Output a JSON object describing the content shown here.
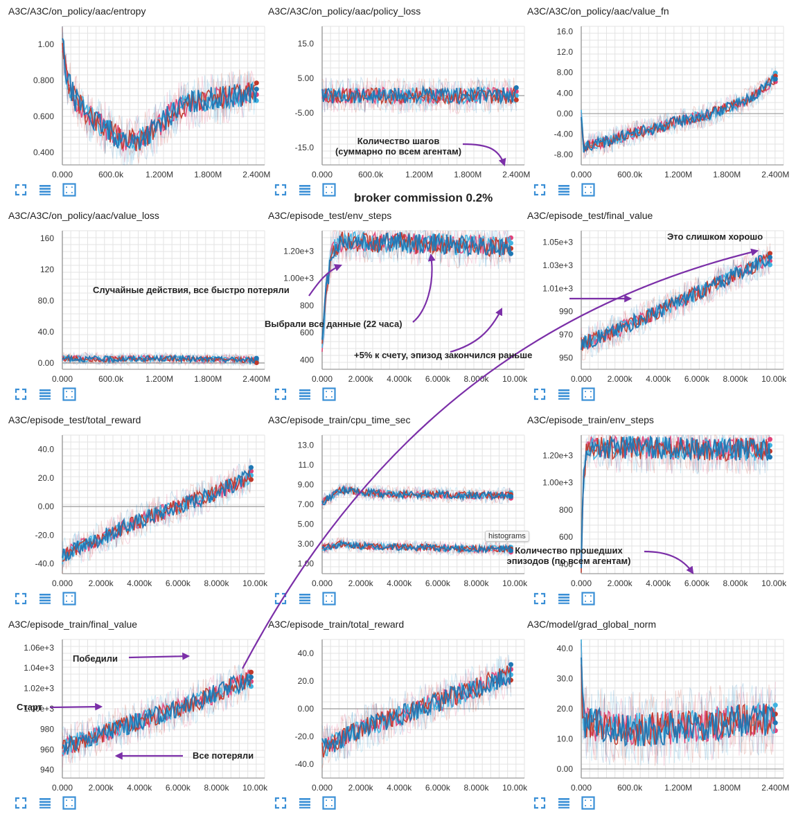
{
  "colors": {
    "run_blue_dark": "#1f77b4",
    "run_blue_light": "#3fb2e0",
    "run_red": "#c0392b",
    "run_pink": "#e0447a",
    "arrow": "#7b2fa8",
    "grid": "#e3e3e3",
    "icon": "#3a8fd6"
  },
  "icons": [
    "expand-icon",
    "data-table-icon",
    "fit-domain-icon"
  ],
  "page_annotations": {
    "broker": "broker commission 0.2%",
    "steps_note": "Количество шагов\n(суммарно по всем агентам)",
    "random_actions": "Случайные действия, все быстро потеряли",
    "all_data": "Выбрали все данные (22 часа)",
    "plus5": "+5% к счету, эпизод закончился раньше",
    "too_good": "Это слишком хорошо",
    "episodes_note": "Количество прошедших\nэпизодов (по всем агентам)",
    "won": "Победили",
    "start": "Старт",
    "all_lost": "Все потеряли",
    "tooltip": "histograms"
  },
  "chart_data": [
    {
      "type": "line",
      "name": "A3C/A3C/on_policy/aac/entropy",
      "title": "A3C/A3C/on_policy/aac/entropy",
      "x_ticks": [
        "0.000",
        "600.0k",
        "1.200M",
        "1.800M",
        "2.400M"
      ],
      "y_ticks": [
        "0.400",
        "0.600",
        "0.800",
        "1.00"
      ],
      "xlim": [
        0,
        2.5
      ],
      "ylim": [
        0.33,
        1.1
      ],
      "series": [
        {
          "x": [
            0,
            0.05,
            0.15,
            0.3,
            0.45,
            0.6,
            0.75,
            0.9,
            1.05,
            1.2,
            1.35,
            1.5,
            1.65,
            1.8,
            1.95,
            2.1,
            2.25,
            2.4
          ],
          "y": [
            1.02,
            0.82,
            0.7,
            0.62,
            0.56,
            0.51,
            0.47,
            0.46,
            0.5,
            0.55,
            0.62,
            0.66,
            0.68,
            0.7,
            0.7,
            0.71,
            0.72,
            0.74
          ],
          "noise": 0.07,
          "seed": 1
        }
      ]
    },
    {
      "type": "line",
      "name": "A3C/A3C/on_policy/aac/policy_loss",
      "title": "A3C/A3C/on_policy/aac/policy_loss",
      "x_ticks": [
        "0.000",
        "600.0k",
        "1.200M",
        "1.800M",
        "2.400M"
      ],
      "y_ticks": [
        "-15.0",
        "-5.00",
        "5.00",
        "15.0"
      ],
      "xlim": [
        0,
        2.5
      ],
      "ylim": [
        -20,
        20
      ],
      "series": [
        {
          "x": [
            0,
            0.5,
            1.0,
            1.5,
            2.0,
            2.4
          ],
          "y": [
            0,
            0,
            0,
            0,
            0,
            0
          ],
          "noise": 2.5,
          "seed": 2
        }
      ]
    },
    {
      "type": "line",
      "name": "A3C/A3C/on_policy/aac/value_fn",
      "title": "A3C/A3C/on_policy/aac/value_fn",
      "x_ticks": [
        "0.000",
        "600.0k",
        "1.200M",
        "1.800M",
        "2.400M"
      ],
      "y_ticks": [
        "-8.00",
        "-4.00",
        "0.00",
        "4.00",
        "8.00",
        "12.0",
        "16.0"
      ],
      "xlim": [
        0,
        2.5
      ],
      "ylim": [
        -10,
        17
      ],
      "series": [
        {
          "x": [
            0,
            0.03,
            0.3,
            0.6,
            0.9,
            1.2,
            1.5,
            1.8,
            2.1,
            2.4
          ],
          "y": [
            0,
            -6.5,
            -5.5,
            -4.0,
            -3.0,
            -1.5,
            -0.5,
            1.0,
            3.0,
            7.0
          ],
          "noise": 1.2,
          "seed": 3
        }
      ]
    },
    {
      "type": "line",
      "name": "A3C/A3C/on_policy/aac/value_loss",
      "title": "A3C/A3C/on_policy/aac/value_loss",
      "x_ticks": [
        "0.000",
        "600.0k",
        "1.200M",
        "1.800M",
        "2.400M"
      ],
      "y_ticks": [
        "0.00",
        "40.0",
        "80.0",
        "120",
        "160"
      ],
      "xlim": [
        0,
        2.5
      ],
      "ylim": [
        -8,
        170
      ],
      "series": [
        {
          "x": [
            0,
            0.6,
            1.2,
            1.8,
            2.4
          ],
          "y": [
            6,
            5,
            6,
            5,
            4
          ],
          "noise": 4,
          "seed": 4
        }
      ]
    },
    {
      "type": "line",
      "name": "A3C/episode_test/env_steps",
      "title": "A3C/episode_test/env_steps",
      "x_ticks": [
        "0.000",
        "2.000k",
        "4.000k",
        "6.000k",
        "8.000k",
        "10.00k"
      ],
      "y_ticks": [
        "400",
        "600",
        "800",
        "1.00e+3",
        "1.20e+3"
      ],
      "xlim": [
        0,
        10.5
      ],
      "ylim": [
        330,
        1350
      ],
      "series": [
        {
          "x": [
            0,
            0.2,
            0.5,
            1,
            2,
            3,
            4,
            5,
            6,
            7,
            8,
            9,
            9.8
          ],
          "y": [
            500,
            900,
            1200,
            1270,
            1270,
            1260,
            1270,
            1250,
            1260,
            1240,
            1250,
            1230,
            1230
          ],
          "noise": 80,
          "seed": 5
        }
      ]
    },
    {
      "type": "line",
      "name": "A3C/episode_test/final_value",
      "title": "A3C/episode_test/final_value",
      "x_ticks": [
        "0.000",
        "2.000k",
        "4.000k",
        "6.000k",
        "8.000k",
        "10.00k"
      ],
      "y_ticks": [
        "950",
        "970",
        "990",
        "1.01e+3",
        "1.03e+3",
        "1.05e+3"
      ],
      "xlim": [
        0,
        10.5
      ],
      "ylim": [
        940,
        1060
      ],
      "series": [
        {
          "x": [
            0,
            1,
            2,
            3,
            4,
            5,
            6,
            7,
            8,
            9,
            9.8
          ],
          "y": [
            962,
            968,
            975,
            983,
            990,
            998,
            1006,
            1014,
            1022,
            1030,
            1036
          ],
          "noise": 7,
          "seed": 6
        }
      ]
    },
    {
      "type": "line",
      "name": "A3C/episode_test/total_reward",
      "title": "A3C/episode_test/total_reward",
      "x_ticks": [
        "0.000",
        "2.000k",
        "4.000k",
        "6.000k",
        "8.000k",
        "10.00k"
      ],
      "y_ticks": [
        "-40.0",
        "-20.0",
        "0.00",
        "20.0",
        "40.0"
      ],
      "xlim": [
        0,
        10.5
      ],
      "ylim": [
        -47,
        50
      ],
      "series": [
        {
          "x": [
            0,
            1,
            2,
            3,
            4,
            5,
            6,
            7,
            8,
            9,
            9.8
          ],
          "y": [
            -35,
            -28,
            -22,
            -16,
            -10,
            -5,
            0,
            5,
            10,
            16,
            22
          ],
          "noise": 6,
          "seed": 7
        }
      ]
    },
    {
      "type": "line",
      "name": "A3C/episode_train/cpu_time_sec",
      "title": "A3C/episode_train/cpu_time_sec",
      "x_ticks": [
        "0.000",
        "2.000k",
        "4.000k",
        "6.000k",
        "8.000k",
        "10.00k"
      ],
      "y_ticks": [
        "1.00",
        "3.00",
        "5.00",
        "7.00",
        "9.00",
        "11.0",
        "13.0"
      ],
      "xlim": [
        0,
        10.5
      ],
      "ylim": [
        0,
        14
      ],
      "series": [
        {
          "x": [
            0,
            1,
            2,
            4,
            6,
            8,
            9.8
          ],
          "y": [
            7.2,
            8.5,
            8.2,
            8.0,
            8.0,
            7.9,
            7.9
          ],
          "noise": 0.4,
          "seed": 8
        },
        {
          "x": [
            0,
            1,
            2,
            4,
            6,
            8,
            9.8
          ],
          "y": [
            2.6,
            3.0,
            2.8,
            2.7,
            2.6,
            2.5,
            2.5
          ],
          "noise": 0.35,
          "seed": 9
        }
      ]
    },
    {
      "type": "line",
      "name": "A3C/episode_train/env_steps",
      "title": "A3C/episode_train/env_steps",
      "x_ticks": [
        "0.000",
        "2.000k",
        "4.000k",
        "6.000k",
        "8.000k",
        "10.00k"
      ],
      "y_ticks": [
        "400",
        "600",
        "800",
        "1.00e+3",
        "1.20e+3"
      ],
      "xlim": [
        0,
        10.5
      ],
      "ylim": [
        330,
        1350
      ],
      "series": [
        {
          "x": [
            0,
            0.1,
            0.3,
            1,
            2,
            4,
            6,
            8,
            9.8
          ],
          "y": [
            400,
            1000,
            1250,
            1260,
            1260,
            1255,
            1250,
            1245,
            1245
          ],
          "noise": 90,
          "seed": 10
        }
      ]
    },
    {
      "type": "line",
      "name": "A3C/episode_train/final_value",
      "title": "A3C/episode_train/final_value",
      "x_ticks": [
        "0.000",
        "2.000k",
        "4.000k",
        "6.000k",
        "8.000k",
        "10.00k"
      ],
      "y_ticks": [
        "940",
        "960",
        "980",
        "1.00e+3",
        "1.02e+3",
        "1.04e+3",
        "1.06e+3"
      ],
      "xlim": [
        0,
        10.5
      ],
      "ylim": [
        932,
        1068
      ],
      "series": [
        {
          "x": [
            0,
            2,
            4,
            6,
            8,
            9.8
          ],
          "y": [
            962,
            975,
            988,
            1000,
            1015,
            1030
          ],
          "noise": 10,
          "seed": 11
        }
      ]
    },
    {
      "type": "line",
      "name": "A3C/episode_train/total_reward",
      "title": "A3C/episode_train/total_reward",
      "x_ticks": [
        "0.000",
        "2.000k",
        "4.000k",
        "6.000k",
        "8.000k",
        "10.00k"
      ],
      "y_ticks": [
        "-40.0",
        "-20.0",
        "0.00",
        "20.0",
        "40.0"
      ],
      "xlim": [
        0,
        10.5
      ],
      "ylim": [
        -50,
        50
      ],
      "series": [
        {
          "x": [
            0,
            2,
            4,
            6,
            8,
            9.8
          ],
          "y": [
            -28,
            -15,
            -5,
            5,
            15,
            25
          ],
          "noise": 8,
          "seed": 12
        }
      ]
    },
    {
      "type": "line",
      "name": "A3C/model/grad_global_norm",
      "title": "A3C/model/grad_global_norm",
      "x_ticks": [
        "0.000",
        "600.0k",
        "1.200M",
        "1.800M",
        "2.400M"
      ],
      "y_ticks": [
        "0.00",
        "10.0",
        "20.0",
        "30.0",
        "40.0"
      ],
      "xlim": [
        0,
        2.5
      ],
      "ylim": [
        -3,
        43
      ],
      "series": [
        {
          "x": [
            0,
            0.02,
            0.3,
            0.8,
            1.2,
            1.6,
            2.0,
            2.4
          ],
          "y": [
            40,
            16,
            14,
            13,
            14,
            15,
            16,
            17
          ],
          "noise": 6,
          "seed": 13
        }
      ]
    }
  ]
}
